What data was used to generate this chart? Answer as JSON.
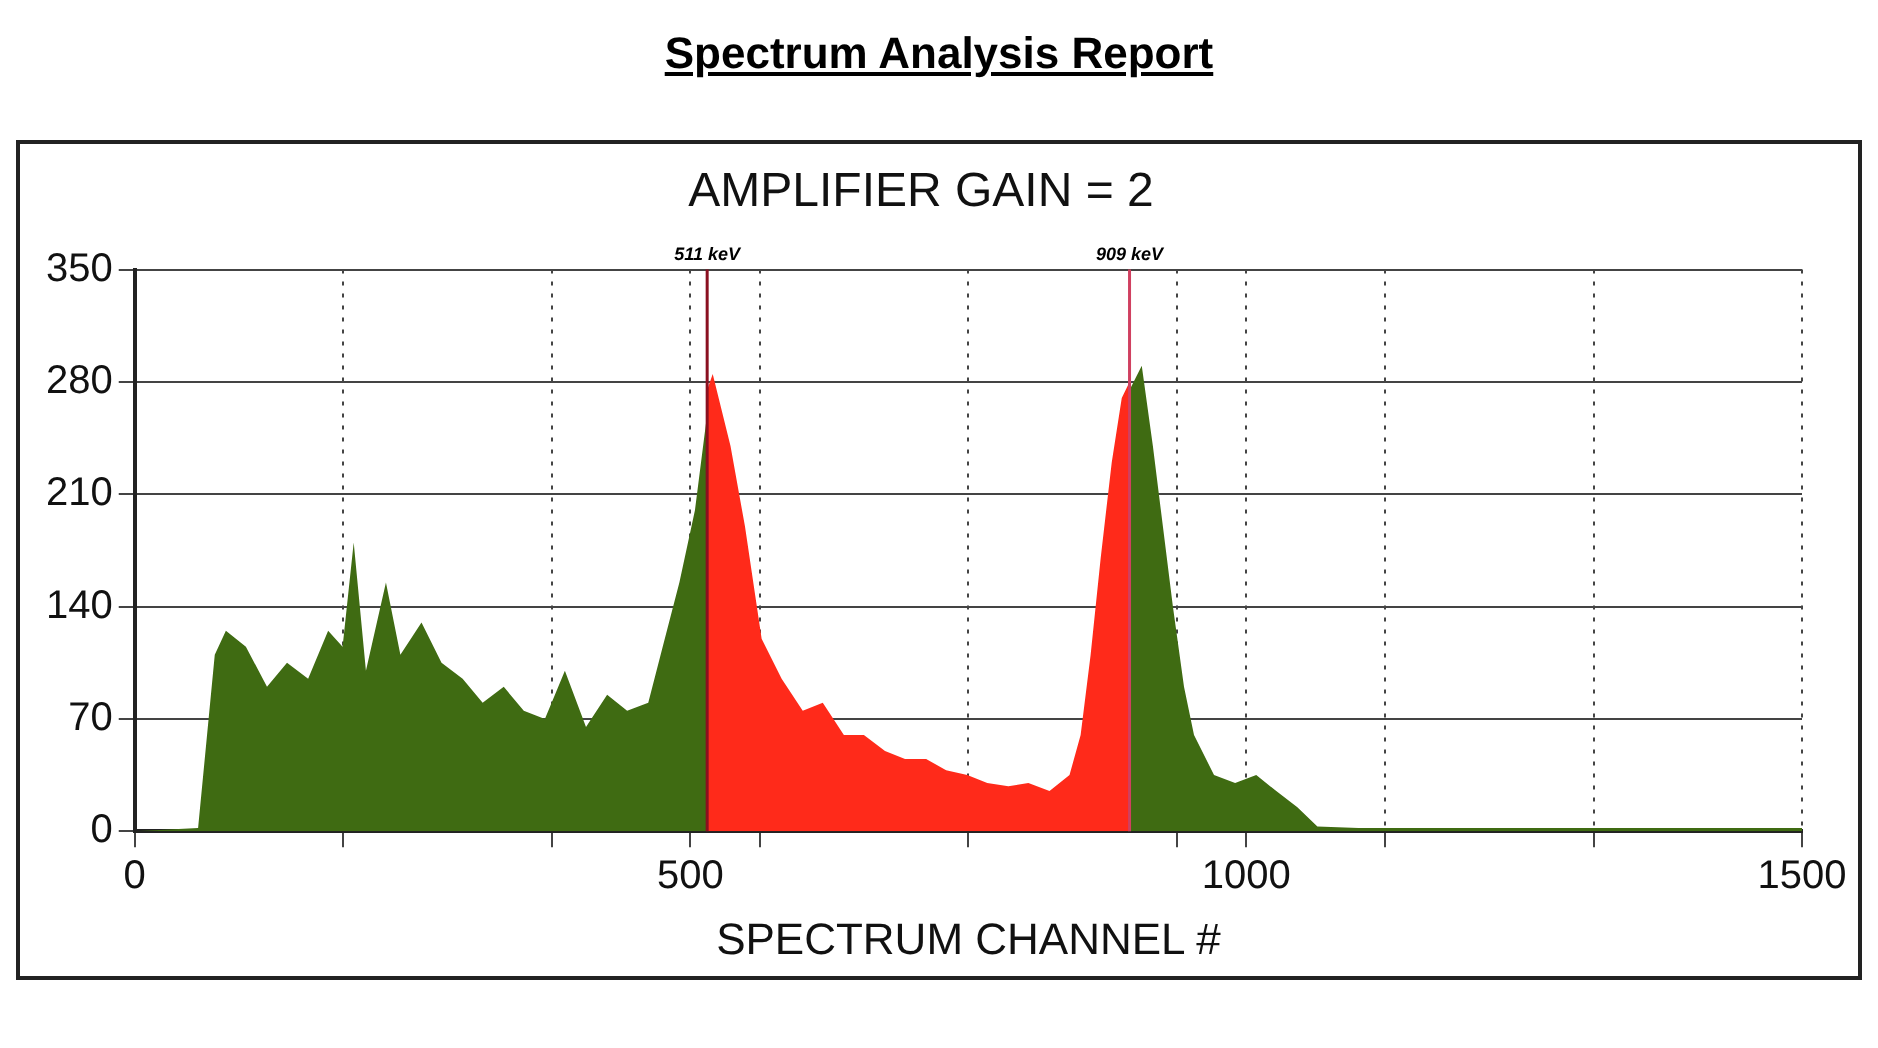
{
  "chart_data": {
    "type": "area",
    "title": "Spectrum Analysis Report",
    "subtitle": "AMPLIFIER GAIN = 2",
    "xlabel": "SPECTRUM CHANNEL #",
    "series": [
      {
        "color": "#3f6b12",
        "x": [
          0,
          57,
          72,
          82,
          100,
          119,
          137,
          156,
          174,
          187,
          197,
          208,
          226,
          239,
          258,
          276,
          295,
          313,
          332,
          350,
          369,
          387,
          406,
          425,
          443,
          462,
          475,
          490,
          504,
          515
        ],
        "values": [
          0,
          2,
          110,
          125,
          115,
          90,
          105,
          95,
          125,
          115,
          180,
          100,
          155,
          110,
          130,
          105,
          95,
          80,
          90,
          75,
          70,
          100,
          65,
          85,
          75,
          80,
          115,
          155,
          200,
          260
        ]
      },
      {
        "color": "#ff2a1a",
        "x": [
          515,
          520,
          536,
          549,
          564,
          582,
          601,
          619,
          638,
          656,
          675,
          693,
          712,
          730,
          749,
          767,
          786,
          804,
          823,
          841,
          851,
          860,
          869,
          879,
          888,
          895
        ],
        "values": [
          275,
          285,
          240,
          190,
          120,
          95,
          75,
          80,
          60,
          60,
          50,
          45,
          45,
          38,
          35,
          30,
          28,
          30,
          25,
          35,
          60,
          110,
          170,
          230,
          270,
          280
        ]
      },
      {
        "color": "#3f6b12",
        "x": [
          895,
          906,
          916,
          925,
          934,
          944,
          953,
          971,
          990,
          1009,
          1027,
          1046,
          1064,
          1101,
          1500
        ],
        "values": [
          275,
          290,
          240,
          190,
          140,
          90,
          60,
          35,
          30,
          35,
          25,
          15,
          3,
          2,
          2
        ]
      }
    ],
    "xlim": [
      0,
      1500
    ],
    "xticks": [
      0,
      {
        "value": 187.5,
        "label": null
      },
      {
        "value": 375,
        "label": null
      },
      500,
      {
        "value": 562.5,
        "label": null
      },
      {
        "value": 750,
        "label": null
      },
      {
        "value": 937.5,
        "label": null
      },
      1000,
      {
        "value": 1125,
        "label": null
      },
      {
        "value": 1312.5,
        "label": null
      },
      1500
    ],
    "ylim": [
      0,
      350
    ],
    "yticks": [
      0,
      70,
      140,
      210,
      280,
      350
    ],
    "ref_lines": [
      {
        "axis": "x",
        "value": 515,
        "label": "511 keV",
        "color": "#8a1020"
      },
      {
        "axis": "x",
        "value": 895,
        "label": "909 keV",
        "color": "#d04060"
      }
    ],
    "grid": true,
    "legend": false
  }
}
